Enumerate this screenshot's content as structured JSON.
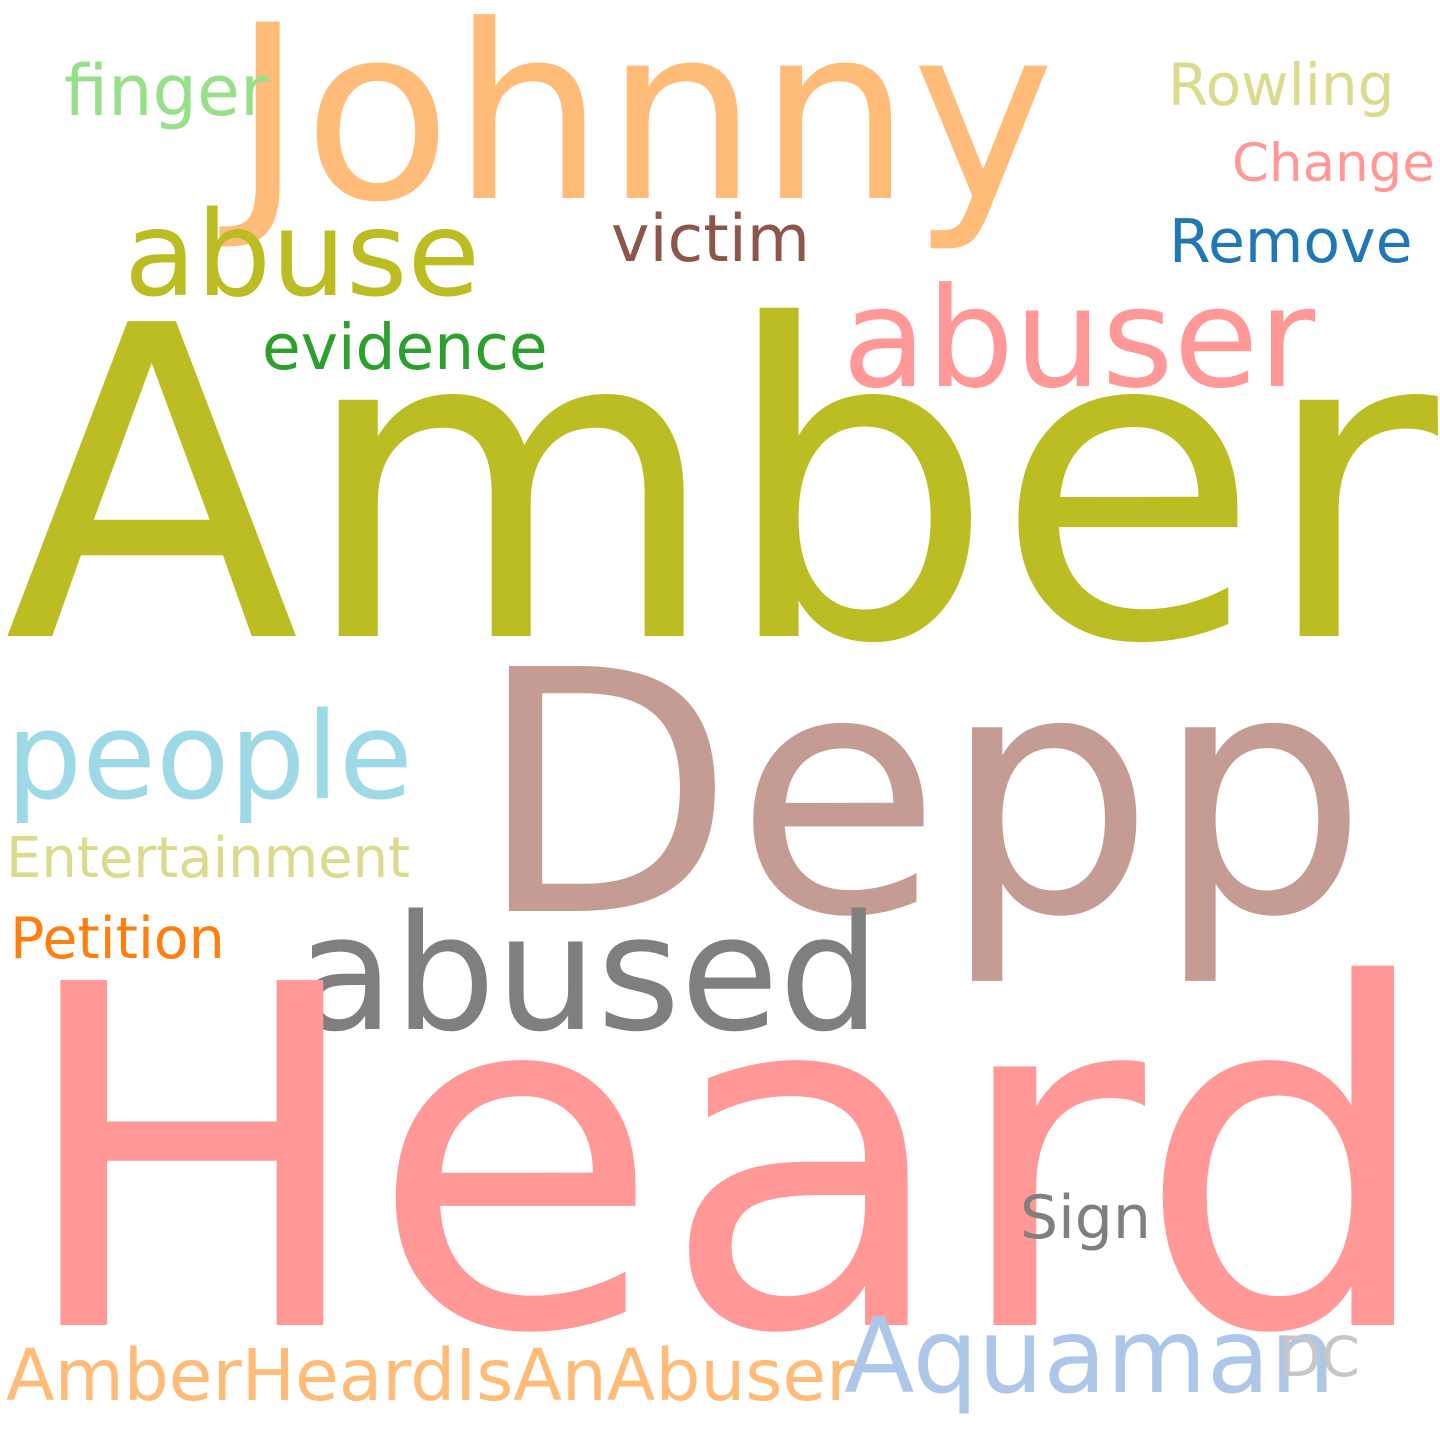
{
  "cloud": {
    "words": {
      "amber": {
        "text": "Amber",
        "color": "#bcbd22"
      },
      "heard": {
        "text": "Heard",
        "color": "#ff9896"
      },
      "depp": {
        "text": "Depp",
        "color": "#c49c94"
      },
      "johnny": {
        "text": "Johnny",
        "color": "#ffbb78"
      },
      "abused": {
        "text": "abused",
        "color": "#7f7f7f"
      },
      "abuser": {
        "text": "abuser",
        "color": "#ff9896"
      },
      "people": {
        "text": "people",
        "color": "#9edae5"
      },
      "abuse": {
        "text": "abuse",
        "color": "#bcbd22"
      },
      "aquaman": {
        "text": "Aquaman",
        "color": "#aec7e8"
      },
      "hashtag": {
        "text": "AmberHeardIsAnAbuser",
        "color": "#ffbb78"
      },
      "finger": {
        "text": "finger",
        "color": "#98df8a"
      },
      "victim": {
        "text": "victim",
        "color": "#8c564b"
      },
      "evidence": {
        "text": "evidence",
        "color": "#2ca02c"
      },
      "remove": {
        "text": "Remove",
        "color": "#1f77b4"
      },
      "sign": {
        "text": "Sign",
        "color": "#7f7f7f"
      },
      "rowling": {
        "text": "Rowling",
        "color": "#dbdb8d"
      },
      "petition": {
        "text": "Petition",
        "color": "#ff7f0e"
      },
      "entertainment": {
        "text": "Entertainment",
        "color": "#dbdb8d"
      },
      "change": {
        "text": "Change",
        "color": "#ff9896"
      },
      "dc": {
        "text": "DC",
        "color": "#c7c7c7"
      }
    }
  }
}
